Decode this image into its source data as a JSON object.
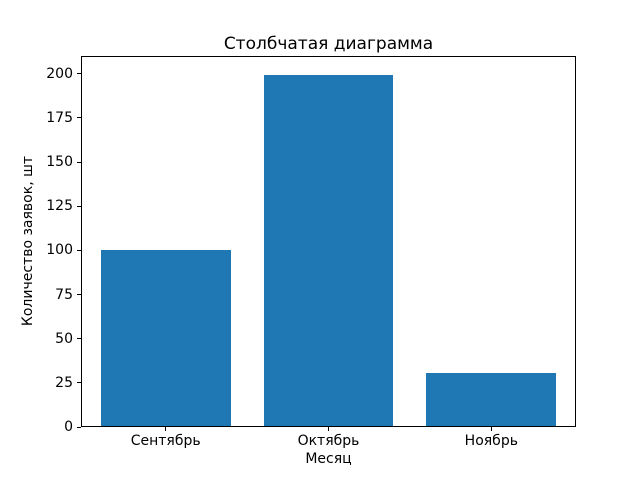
{
  "chart_data": {
    "type": "bar",
    "title": "Столбчатая диаграмма",
    "xlabel": "Месяц",
    "ylabel": "Количество заявок, шт",
    "categories": [
      "Сентябрь",
      "Октябрь",
      "Ноябрь"
    ],
    "values": [
      100,
      200,
      30
    ],
    "yticks": [
      0,
      25,
      50,
      75,
      100,
      125,
      150,
      175,
      200
    ],
    "ylim": [
      0,
      210
    ],
    "xlim": [
      -0.52,
      2.52
    ],
    "bar_width": 0.8,
    "grid": false,
    "legend": null,
    "colors": {
      "bar": "#1f77b4",
      "text": "#000000",
      "spine": "#000000",
      "background": "#ffffff"
    }
  }
}
